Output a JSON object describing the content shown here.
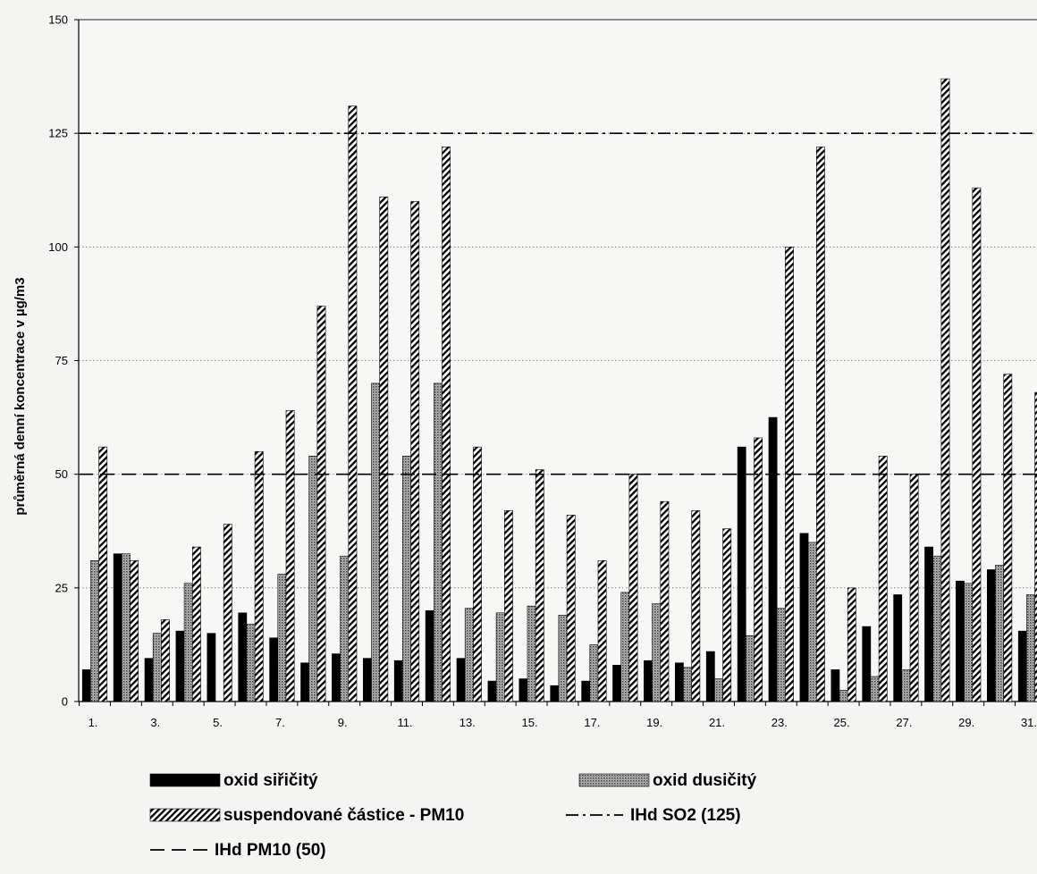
{
  "chart_data": {
    "type": "bar",
    "ylabel": "průměrná denní koncentrace v µg/m3",
    "ylim": [
      0,
      150
    ],
    "yticks": [
      0,
      25,
      50,
      75,
      100,
      125,
      150
    ],
    "grid": true,
    "legend_position": "bottom",
    "days": [
      1,
      2,
      3,
      4,
      5,
      6,
      7,
      8,
      9,
      10,
      11,
      12,
      13,
      14,
      15,
      16,
      17,
      18,
      19,
      20,
      21,
      22,
      23,
      24,
      25,
      26,
      27,
      28,
      29,
      30,
      31
    ],
    "x_tick_labels": [
      "1.",
      "3.",
      "5.",
      "7.",
      "9.",
      "11.",
      "13.",
      "15.",
      "17.",
      "19.",
      "21.",
      "23.",
      "25.",
      "27.",
      "29.",
      "31."
    ],
    "series": [
      {
        "name": "oxid siřičitý",
        "pattern": "solid",
        "color": "#000000",
        "values": [
          7,
          32.5,
          9.5,
          15.5,
          15,
          19.5,
          14,
          8.5,
          10.5,
          9.5,
          9,
          20,
          9.5,
          4.5,
          5,
          3.5,
          4.5,
          8,
          9,
          8.5,
          11,
          56,
          62.5,
          37,
          7,
          16.5,
          23.5,
          34,
          26.5,
          29,
          15.5
        ]
      },
      {
        "name": "oxid dusičitý",
        "pattern": "dots",
        "color": "#808080",
        "values": [
          31,
          32.5,
          15,
          26,
          0,
          17,
          28,
          54,
          32,
          70,
          54,
          70,
          20.5,
          19.5,
          21,
          19,
          12.5,
          24,
          21.5,
          7.5,
          5,
          14.5,
          20.5,
          35,
          2.5,
          5.5,
          7,
          32,
          26,
          30,
          23.5
        ]
      },
      {
        "name": "suspendované částice - PM10",
        "pattern": "diagonal",
        "color": "#000000",
        "values": [
          56,
          31,
          18,
          34,
          39,
          55,
          64,
          87,
          131,
          111,
          110,
          122,
          56,
          42,
          51,
          41,
          31,
          50,
          44,
          42,
          38,
          58,
          100,
          122,
          25,
          54,
          50,
          137,
          113,
          72,
          68
        ]
      }
    ],
    "reference_lines": [
      {
        "name": "IHd SO2 (125)",
        "value": 125,
        "style": "dash-dot"
      },
      {
        "name": "IHd PM10 (50)",
        "value": 50,
        "style": "dashed"
      }
    ]
  }
}
